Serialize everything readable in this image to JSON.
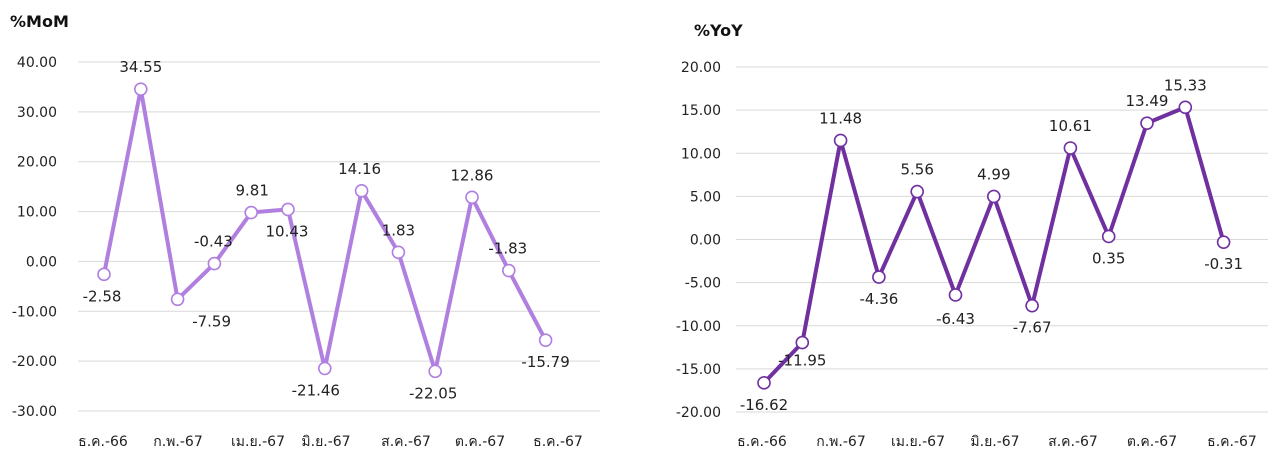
{
  "charts": [
    {
      "type": "line",
      "title": "%MoM",
      "color": "#b07fe0",
      "ylim": [
        -30,
        40
      ],
      "yticks": [
        "40.00",
        "30.00",
        "20.00",
        "10.00",
        "0.00",
        "-10.00",
        "-20.00",
        "-30.00"
      ],
      "xticks": [
        "ธ.ค.-66",
        "ก.พ.-67",
        "เม.ย.-67",
        "มิ.ย.-67",
        "ส.ค.-67",
        "ต.ค.-67",
        "ธ.ค.-67"
      ],
      "values": [
        -2.58,
        34.55,
        -7.59,
        -0.43,
        9.81,
        10.43,
        -21.46,
        14.16,
        1.83,
        -22.05,
        12.86,
        -1.83,
        -15.79
      ],
      "labels": [
        "-2.58",
        "34.55",
        "-7.59",
        "-0.43",
        "9.81",
        "10.43",
        "-21.46",
        "14.16",
        "1.83",
        "-22.05",
        "12.86",
        "-1.83",
        "-15.79"
      ]
    },
    {
      "type": "line",
      "title": "%YoY",
      "color": "#7030a0",
      "ylim": [
        -20,
        20
      ],
      "yticks": [
        "20.00",
        "15.00",
        "10.00",
        "5.00",
        "0.00",
        "-5.00",
        "-10.00",
        "-15.00",
        "-20.00"
      ],
      "xticks": [
        "ธ.ค.-66",
        "ก.พ.-67",
        "เม.ย.-67",
        "มิ.ย.-67",
        "ส.ค.-67",
        "ต.ค.-67",
        "ธ.ค.-67"
      ],
      "values": [
        -16.62,
        -11.95,
        11.48,
        -4.36,
        5.56,
        -6.43,
        4.99,
        -7.67,
        10.61,
        0.35,
        13.49,
        15.33,
        -0.31
      ],
      "labels": [
        "-16.62",
        "-11.95",
        "11.48",
        "-4.36",
        "5.56",
        "-6.43",
        "4.99",
        "-7.67",
        "10.61",
        "0.35",
        "13.49",
        "15.33",
        "-0.31"
      ]
    }
  ]
}
